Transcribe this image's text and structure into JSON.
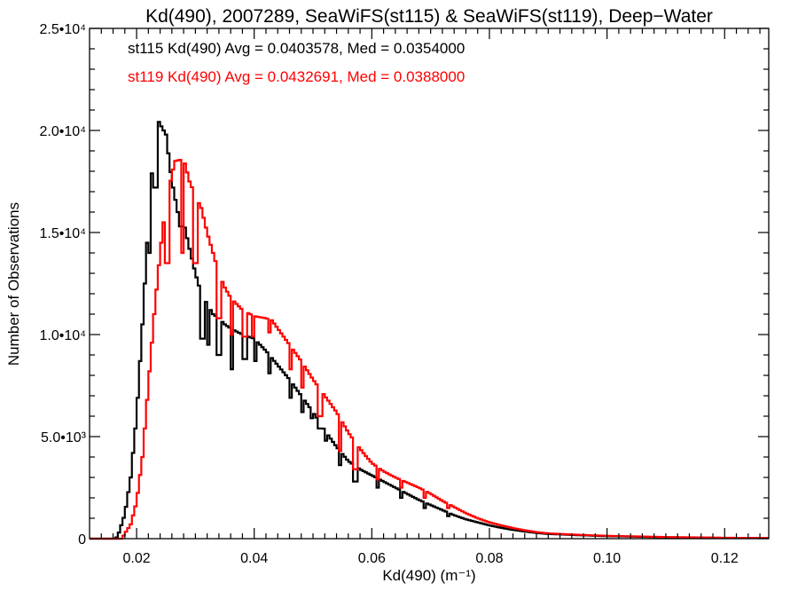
{
  "chart_data": {
    "type": "histogram",
    "title": "Kd(490), 2007289, SeaWiFS(st115) & SeaWiFS(st119), Deep−Water",
    "xlabel": "Kd(490) (m⁻¹)",
    "ylabel": "Number of Observations",
    "xlim": [
      0.012,
      0.1275
    ],
    "ylim": [
      0,
      25000
    ],
    "grid": false,
    "legend_position": "top-left",
    "x_ticks": [
      {
        "value": 0.02,
        "label": "0.02"
      },
      {
        "value": 0.04,
        "label": "0.04"
      },
      {
        "value": 0.06,
        "label": "0.06"
      },
      {
        "value": 0.08,
        "label": "0.08"
      },
      {
        "value": 0.1,
        "label": "0.10"
      },
      {
        "value": 0.12,
        "label": "0.12"
      }
    ],
    "y_ticks": [
      {
        "value": 0,
        "label": "0"
      },
      {
        "value": 5000,
        "label": "5.0•10³"
      },
      {
        "value": 10000,
        "label": "1.0•10⁴"
      },
      {
        "value": 15000,
        "label": "1.5•10⁴"
      },
      {
        "value": 20000,
        "label": "2.0•10⁴"
      },
      {
        "value": 25000,
        "label": "2.5•10⁴"
      }
    ],
    "series": [
      {
        "name": "st115",
        "color": "#000000",
        "legend": "st115 Kd(490) Avg = 0.0403578, Med = 0.0354000",
        "points": [
          [
            0.012,
            0
          ],
          [
            0.0165,
            0
          ],
          [
            0.017,
            300
          ],
          [
            0.018,
            1200
          ],
          [
            0.019,
            3000
          ],
          [
            0.02,
            6000
          ],
          [
            0.021,
            10500
          ],
          [
            0.022,
            15500
          ],
          [
            0.023,
            19500
          ],
          [
            0.0235,
            20600
          ],
          [
            0.024,
            20300
          ],
          [
            0.025,
            19800
          ],
          [
            0.026,
            17500
          ],
          [
            0.027,
            16000
          ],
          [
            0.028,
            15500
          ],
          [
            0.029,
            14200
          ],
          [
            0.03,
            13000
          ],
          [
            0.031,
            12000
          ],
          [
            0.032,
            11500
          ],
          [
            0.033,
            11000
          ],
          [
            0.034,
            10800
          ],
          [
            0.035,
            10500
          ],
          [
            0.036,
            10300
          ],
          [
            0.038,
            10000
          ],
          [
            0.04,
            9800
          ],
          [
            0.042,
            9200
          ],
          [
            0.044,
            8500
          ],
          [
            0.046,
            7800
          ],
          [
            0.048,
            7000
          ],
          [
            0.05,
            6200
          ],
          [
            0.052,
            5300
          ],
          [
            0.054,
            4500
          ],
          [
            0.056,
            3800
          ],
          [
            0.058,
            3400
          ],
          [
            0.06,
            3100
          ],
          [
            0.062,
            2800
          ],
          [
            0.064,
            2500
          ],
          [
            0.066,
            2200
          ],
          [
            0.068,
            1900
          ],
          [
            0.07,
            1650
          ],
          [
            0.072,
            1400
          ],
          [
            0.074,
            1150
          ],
          [
            0.076,
            950
          ],
          [
            0.078,
            800
          ],
          [
            0.08,
            650
          ],
          [
            0.082,
            530
          ],
          [
            0.084,
            430
          ],
          [
            0.086,
            350
          ],
          [
            0.088,
            280
          ],
          [
            0.09,
            230
          ],
          [
            0.095,
            170
          ],
          [
            0.1,
            120
          ],
          [
            0.11,
            70
          ],
          [
            0.12,
            40
          ],
          [
            0.1275,
            25
          ]
        ],
        "dips": [
          [
            0.0222,
            14000
          ],
          [
            0.0232,
            17200
          ],
          [
            0.0276,
            15300
          ],
          [
            0.0312,
            9800
          ],
          [
            0.0322,
            9500
          ],
          [
            0.034,
            9000
          ],
          [
            0.0362,
            8300
          ],
          [
            0.0384,
            8800
          ],
          [
            0.0402,
            8700
          ],
          [
            0.0425,
            8100
          ],
          [
            0.0462,
            6900
          ],
          [
            0.0482,
            6200
          ],
          [
            0.0498,
            5900
          ],
          [
            0.0512,
            5400
          ],
          [
            0.0522,
            4800
          ],
          [
            0.0545,
            3600
          ],
          [
            0.0572,
            2800
          ],
          [
            0.061,
            2500
          ],
          [
            0.065,
            2000
          ],
          [
            0.069,
            1500
          ],
          [
            0.073,
            1100
          ]
        ]
      },
      {
        "name": "st119",
        "color": "#ff0000",
        "legend": "st119 Kd(490) Avg = 0.0432691, Med = 0.0388000",
        "points": [
          [
            0.012,
            0
          ],
          [
            0.0175,
            0
          ],
          [
            0.018,
            250
          ],
          [
            0.019,
            700
          ],
          [
            0.02,
            1800
          ],
          [
            0.021,
            4000
          ],
          [
            0.022,
            7500
          ],
          [
            0.023,
            11000
          ],
          [
            0.024,
            14000
          ],
          [
            0.025,
            16500
          ],
          [
            0.026,
            17800
          ],
          [
            0.0265,
            18500
          ],
          [
            0.028,
            18600
          ],
          [
            0.029,
            17500
          ],
          [
            0.03,
            16800
          ],
          [
            0.031,
            16200
          ],
          [
            0.032,
            15000
          ],
          [
            0.033,
            14000
          ],
          [
            0.034,
            13000
          ],
          [
            0.035,
            12300
          ],
          [
            0.036,
            11800
          ],
          [
            0.037,
            11500
          ],
          [
            0.038,
            11200
          ],
          [
            0.04,
            10900
          ],
          [
            0.042,
            10800
          ],
          [
            0.043,
            10700
          ],
          [
            0.044,
            10300
          ],
          [
            0.046,
            9500
          ],
          [
            0.048,
            8700
          ],
          [
            0.05,
            7800
          ],
          [
            0.052,
            7000
          ],
          [
            0.054,
            6200
          ],
          [
            0.056,
            5200
          ],
          [
            0.058,
            4400
          ],
          [
            0.06,
            3700
          ],
          [
            0.062,
            3300
          ],
          [
            0.064,
            3000
          ],
          [
            0.066,
            2750
          ],
          [
            0.068,
            2500
          ],
          [
            0.07,
            2200
          ],
          [
            0.072,
            1850
          ],
          [
            0.074,
            1550
          ],
          [
            0.076,
            1250
          ],
          [
            0.078,
            1000
          ],
          [
            0.08,
            800
          ],
          [
            0.082,
            650
          ],
          [
            0.084,
            520
          ],
          [
            0.086,
            410
          ],
          [
            0.088,
            320
          ],
          [
            0.09,
            260
          ],
          [
            0.095,
            190
          ],
          [
            0.1,
            140
          ],
          [
            0.11,
            80
          ],
          [
            0.12,
            45
          ],
          [
            0.1275,
            30
          ]
        ],
        "dips": [
          [
            0.0252,
            13500
          ],
          [
            0.0278,
            14000
          ],
          [
            0.03,
            13500
          ],
          [
            0.034,
            10800
          ],
          [
            0.0362,
            10000
          ],
          [
            0.0384,
            9900
          ],
          [
            0.0398,
            9900
          ],
          [
            0.0425,
            10100
          ],
          [
            0.0462,
            8300
          ],
          [
            0.0482,
            7400
          ],
          [
            0.0512,
            6000
          ],
          [
            0.0545,
            4300
          ],
          [
            0.0572,
            3400
          ],
          [
            0.061,
            2900
          ],
          [
            0.065,
            2500
          ],
          [
            0.069,
            2000
          ],
          [
            0.073,
            1500
          ]
        ]
      }
    ]
  }
}
